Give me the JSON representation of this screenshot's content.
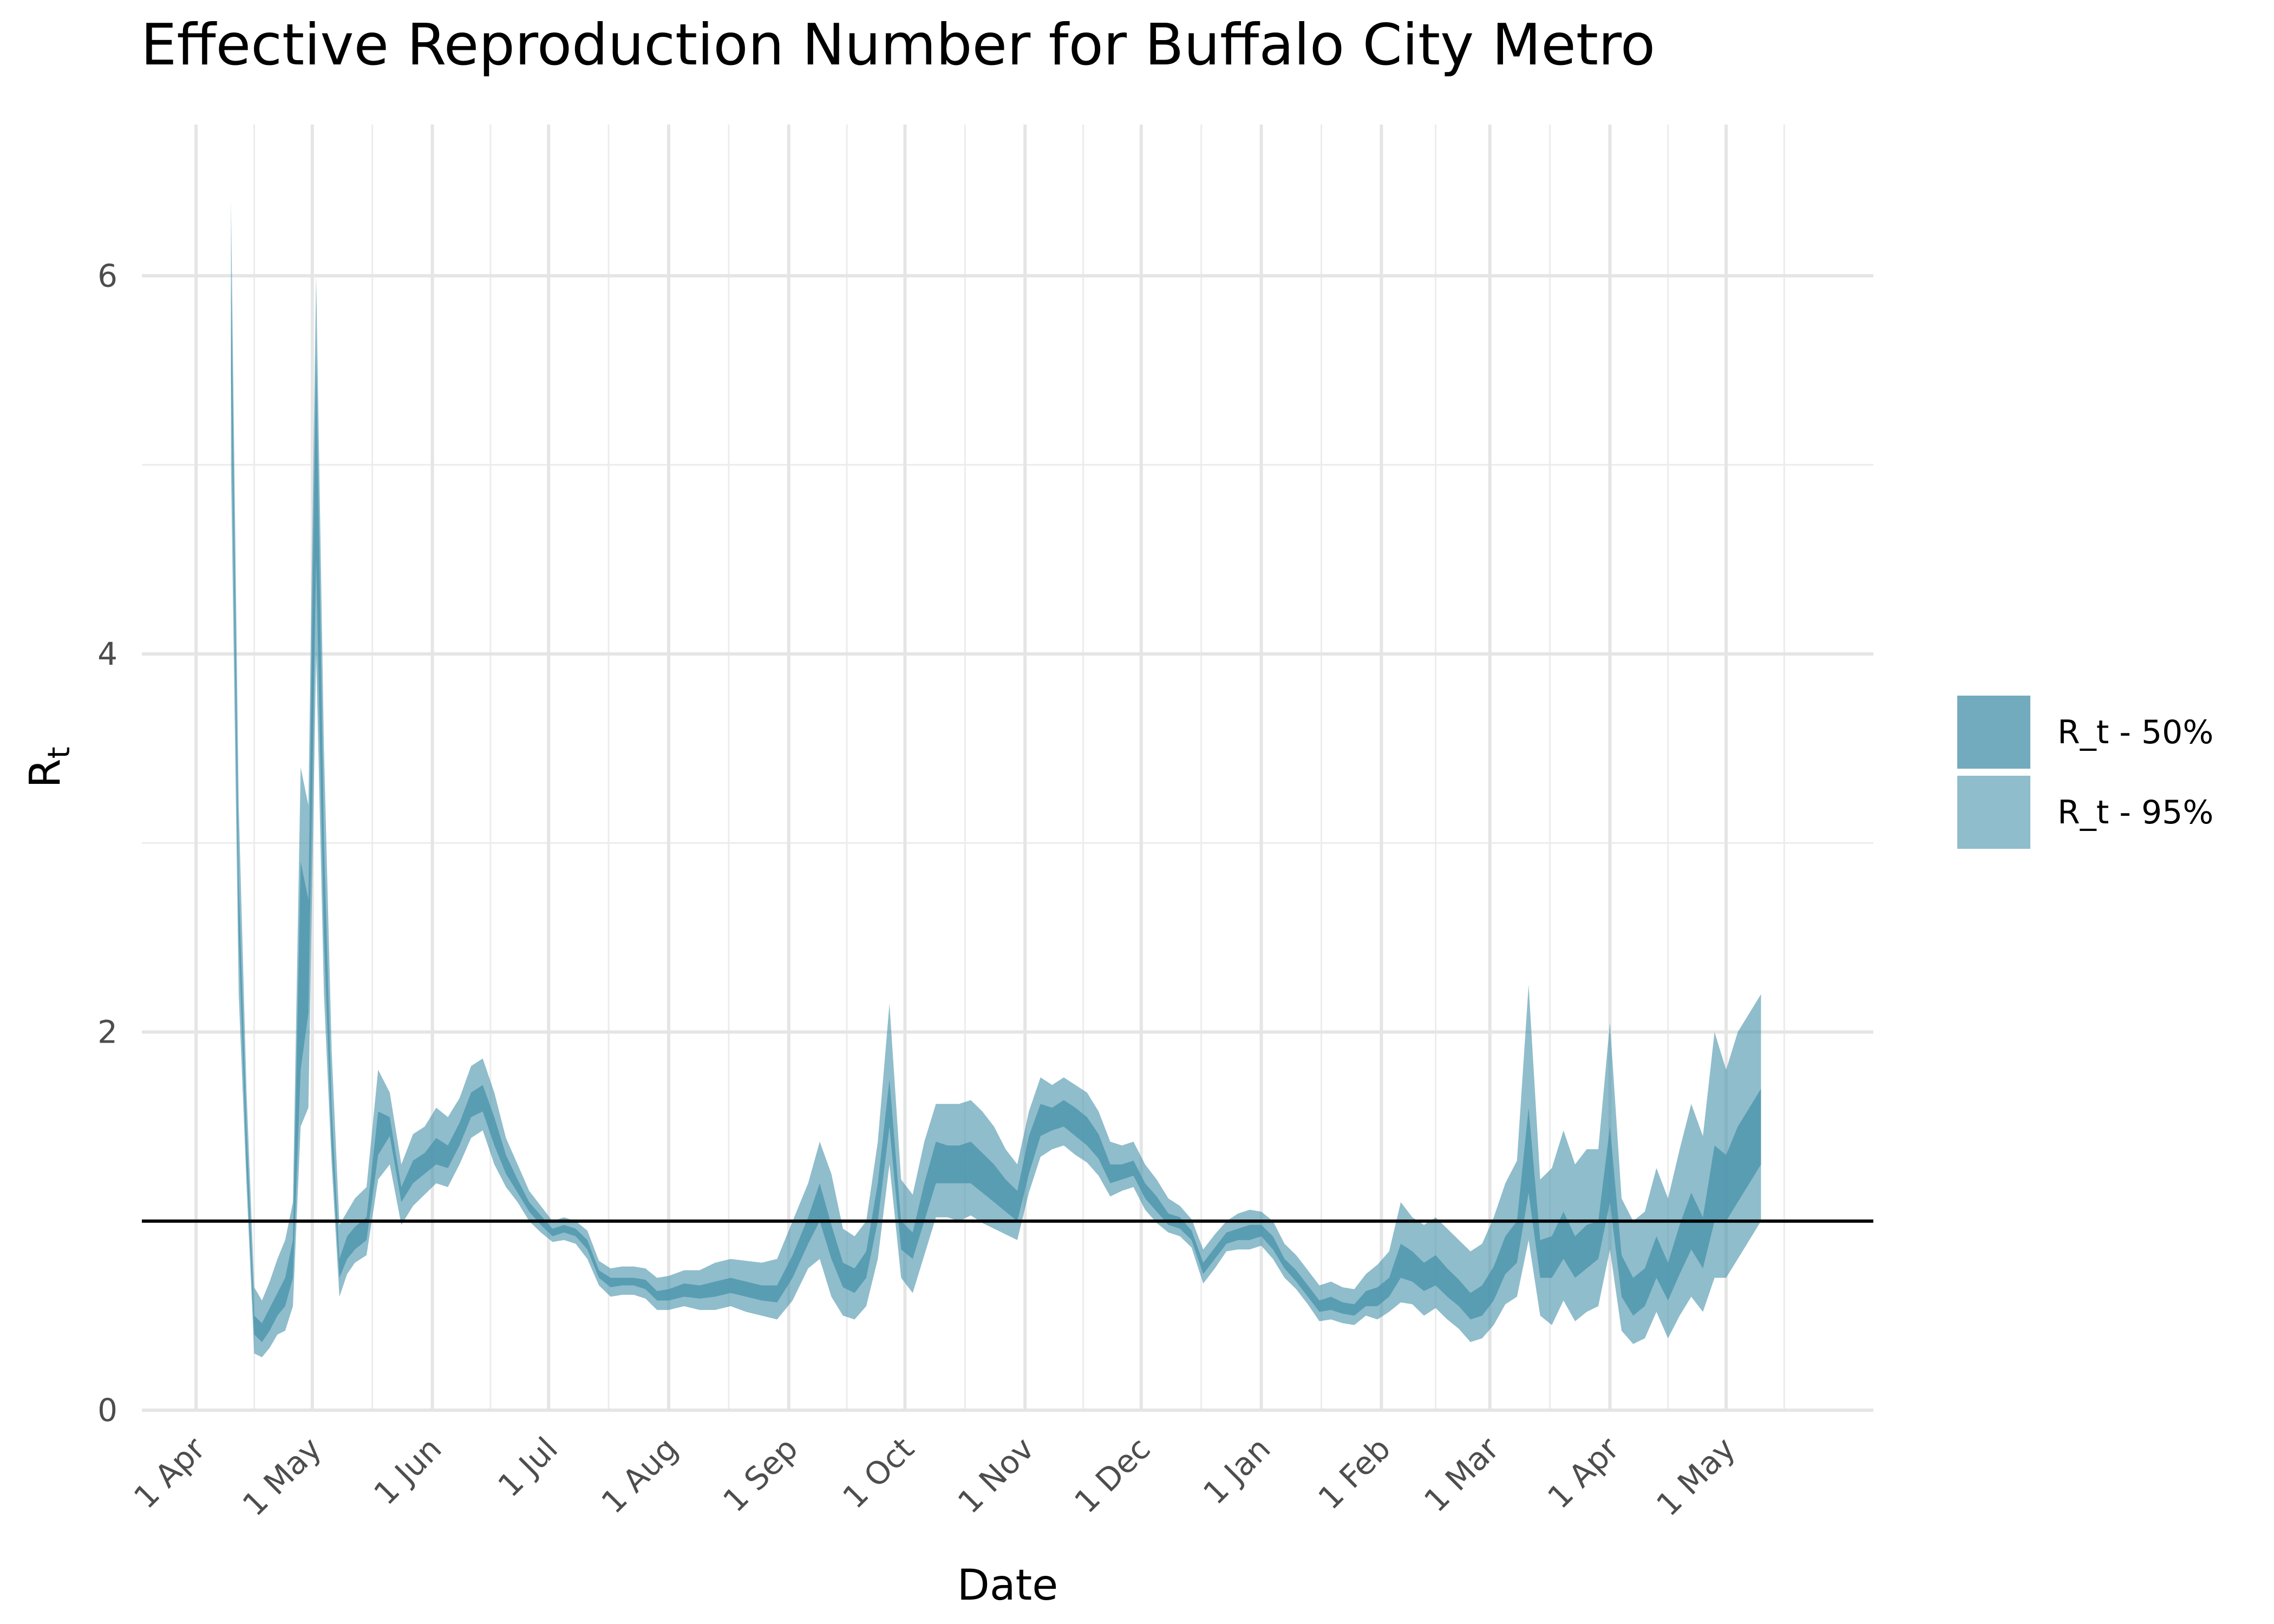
{
  "chart_data": {
    "type": "area",
    "title": "Effective Reproduction Number for Buffalo City Metro",
    "xlabel": "Date",
    "ylabel": "R",
    "ylabel_sub": "t",
    "x_range": [
      "2020-03-18",
      "2021-06-08"
    ],
    "ylim": [
      0,
      6.8
    ],
    "y_ticks": [
      0,
      2,
      4,
      6
    ],
    "x_ticks": [
      {
        "date": "2020-04-01",
        "label": "1 Apr"
      },
      {
        "date": "2020-05-01",
        "label": "1 May"
      },
      {
        "date": "2020-06-01",
        "label": "1 Jun"
      },
      {
        "date": "2020-07-01",
        "label": "1 Jul"
      },
      {
        "date": "2020-08-01",
        "label": "1 Aug"
      },
      {
        "date": "2020-09-01",
        "label": "1 Sep"
      },
      {
        "date": "2020-10-01",
        "label": "1 Oct"
      },
      {
        "date": "2020-11-01",
        "label": "1 Nov"
      },
      {
        "date": "2020-12-01",
        "label": "1 Dec"
      },
      {
        "date": "2021-01-01",
        "label": "1 Jan"
      },
      {
        "date": "2021-02-01",
        "label": "1 Feb"
      },
      {
        "date": "2021-03-01",
        "label": "1 Mar"
      },
      {
        "date": "2021-04-01",
        "label": "1 Apr"
      },
      {
        "date": "2021-05-01",
        "label": "1 May"
      }
    ],
    "reference_line": {
      "y": 1,
      "color": "#000000"
    },
    "grid": true,
    "legend_position": "right",
    "series": [
      {
        "name": "R_t - 50%",
        "color": "#4a94ac",
        "opacity": 0.78,
        "x": [
          "2020-04-10",
          "2020-04-12",
          "2020-04-14",
          "2020-04-16",
          "2020-04-18",
          "2020-04-20",
          "2020-04-22",
          "2020-04-24",
          "2020-04-26",
          "2020-04-28",
          "2020-04-30",
          "2020-05-02",
          "2020-05-04",
          "2020-05-06",
          "2020-05-08",
          "2020-05-10",
          "2020-05-12",
          "2020-05-15",
          "2020-05-18",
          "2020-05-21",
          "2020-05-24",
          "2020-05-27",
          "2020-05-30",
          "2020-06-02",
          "2020-06-05",
          "2020-06-08",
          "2020-06-11",
          "2020-06-14",
          "2020-06-17",
          "2020-06-20",
          "2020-06-23",
          "2020-06-26",
          "2020-06-29",
          "2020-07-02",
          "2020-07-05",
          "2020-07-08",
          "2020-07-11",
          "2020-07-14",
          "2020-07-17",
          "2020-07-20",
          "2020-07-23",
          "2020-07-26",
          "2020-07-29",
          "2020-08-01",
          "2020-08-05",
          "2020-08-09",
          "2020-08-13",
          "2020-08-17",
          "2020-08-21",
          "2020-08-25",
          "2020-08-29",
          "2020-09-02",
          "2020-09-06",
          "2020-09-09",
          "2020-09-12",
          "2020-09-15",
          "2020-09-18",
          "2020-09-21",
          "2020-09-24",
          "2020-09-27",
          "2020-09-30",
          "2020-10-03",
          "2020-10-06",
          "2020-10-09",
          "2020-10-12",
          "2020-10-15",
          "2020-10-18",
          "2020-10-21",
          "2020-10-24",
          "2020-10-27",
          "2020-10-30",
          "2020-11-02",
          "2020-11-05",
          "2020-11-08",
          "2020-11-11",
          "2020-11-14",
          "2020-11-17",
          "2020-11-20",
          "2020-11-23",
          "2020-11-26",
          "2020-11-29",
          "2020-12-02",
          "2020-12-05",
          "2020-12-08",
          "2020-12-11",
          "2020-12-14",
          "2020-12-17",
          "2020-12-20",
          "2020-12-23",
          "2020-12-26",
          "2020-12-29",
          "2021-01-01",
          "2021-01-04",
          "2021-01-07",
          "2021-01-10",
          "2021-01-13",
          "2021-01-16",
          "2021-01-19",
          "2021-01-22",
          "2021-01-25",
          "2021-01-28",
          "2021-01-31",
          "2021-02-03",
          "2021-02-06",
          "2021-02-09",
          "2021-02-12",
          "2021-02-15",
          "2021-02-18",
          "2021-02-21",
          "2021-02-24",
          "2021-02-27",
          "2021-03-02",
          "2021-03-05",
          "2021-03-08",
          "2021-03-11",
          "2021-03-14",
          "2021-03-17",
          "2021-03-20",
          "2021-03-23",
          "2021-03-26",
          "2021-03-29",
          "2021-04-01",
          "2021-04-04",
          "2021-04-07",
          "2021-04-10",
          "2021-04-13",
          "2021-04-16",
          "2021-04-19",
          "2021-04-22",
          "2021-04-25",
          "2021-04-28",
          "2021-05-01",
          "2021-05-04",
          "2021-05-07",
          "2021-05-10"
        ],
        "lower": [
          5.5,
          2.5,
          1.3,
          0.4,
          0.36,
          0.42,
          0.5,
          0.55,
          0.7,
          1.8,
          2.1,
          4.5,
          2.5,
          1.4,
          0.7,
          0.8,
          0.85,
          0.9,
          1.35,
          1.45,
          1.1,
          1.2,
          1.25,
          1.3,
          1.28,
          1.4,
          1.55,
          1.58,
          1.4,
          1.25,
          1.15,
          1.05,
          0.98,
          0.92,
          0.94,
          0.92,
          0.85,
          0.7,
          0.65,
          0.66,
          0.66,
          0.64,
          0.58,
          0.58,
          0.6,
          0.59,
          0.6,
          0.62,
          0.6,
          0.58,
          0.57,
          0.7,
          0.88,
          1.0,
          0.8,
          0.65,
          0.62,
          0.7,
          1.0,
          1.5,
          0.85,
          0.8,
          1.0,
          1.2,
          1.2,
          1.2,
          1.2,
          1.15,
          1.1,
          1.05,
          1.0,
          1.25,
          1.45,
          1.48,
          1.5,
          1.45,
          1.4,
          1.33,
          1.2,
          1.22,
          1.24,
          1.12,
          1.05,
          0.98,
          0.96,
          0.9,
          0.72,
          0.8,
          0.88,
          0.9,
          0.9,
          0.92,
          0.85,
          0.75,
          0.68,
          0.6,
          0.52,
          0.53,
          0.51,
          0.5,
          0.55,
          0.55,
          0.6,
          0.7,
          0.68,
          0.63,
          0.66,
          0.6,
          0.55,
          0.48,
          0.5,
          0.58,
          0.72,
          0.78,
          1.15,
          0.7,
          0.7,
          0.8,
          0.7,
          0.75,
          0.8,
          1.1,
          0.6,
          0.5,
          0.55,
          0.7,
          0.58,
          0.72,
          0.85,
          0.75,
          1.0,
          1.0,
          1.1,
          1.2,
          1.3
        ],
        "upper": [
          6.0,
          2.8,
          1.5,
          0.5,
          0.46,
          0.54,
          0.62,
          0.7,
          0.9,
          2.9,
          2.7,
          5.6,
          3.0,
          1.6,
          0.8,
          0.92,
          0.97,
          1.02,
          1.58,
          1.55,
          1.18,
          1.32,
          1.36,
          1.44,
          1.4,
          1.52,
          1.68,
          1.72,
          1.55,
          1.35,
          1.22,
          1.1,
          1.03,
          0.96,
          0.98,
          0.96,
          0.9,
          0.74,
          0.7,
          0.7,
          0.7,
          0.69,
          0.63,
          0.64,
          0.67,
          0.66,
          0.68,
          0.7,
          0.68,
          0.66,
          0.66,
          0.82,
          1.02,
          1.2,
          0.98,
          0.78,
          0.75,
          0.84,
          1.2,
          1.75,
          1.0,
          0.94,
          1.2,
          1.42,
          1.4,
          1.4,
          1.42,
          1.36,
          1.3,
          1.22,
          1.16,
          1.45,
          1.62,
          1.6,
          1.64,
          1.6,
          1.55,
          1.46,
          1.3,
          1.3,
          1.32,
          1.2,
          1.13,
          1.04,
          1.02,
          0.95,
          0.78,
          0.86,
          0.94,
          0.96,
          0.98,
          0.98,
          0.92,
          0.8,
          0.74,
          0.66,
          0.58,
          0.6,
          0.57,
          0.56,
          0.63,
          0.65,
          0.7,
          0.88,
          0.84,
          0.78,
          0.82,
          0.75,
          0.69,
          0.62,
          0.66,
          0.76,
          0.92,
          1.0,
          1.6,
          0.9,
          0.92,
          1.05,
          0.92,
          0.98,
          1.0,
          1.5,
          0.82,
          0.7,
          0.75,
          0.92,
          0.78,
          0.98,
          1.15,
          1.02,
          1.4,
          1.35,
          1.5,
          1.6,
          1.7
        ]
      },
      {
        "name": "R_t - 95%",
        "color": "#4a94ac",
        "opacity": 0.62,
        "x": [
          "2020-04-10",
          "2020-04-12",
          "2020-04-14",
          "2020-04-16",
          "2020-04-18",
          "2020-04-20",
          "2020-04-22",
          "2020-04-24",
          "2020-04-26",
          "2020-04-28",
          "2020-04-30",
          "2020-05-02",
          "2020-05-04",
          "2020-05-06",
          "2020-05-08",
          "2020-05-10",
          "2020-05-12",
          "2020-05-15",
          "2020-05-18",
          "2020-05-21",
          "2020-05-24",
          "2020-05-27",
          "2020-05-30",
          "2020-06-02",
          "2020-06-05",
          "2020-06-08",
          "2020-06-11",
          "2020-06-14",
          "2020-06-17",
          "2020-06-20",
          "2020-06-23",
          "2020-06-26",
          "2020-06-29",
          "2020-07-02",
          "2020-07-05",
          "2020-07-08",
          "2020-07-11",
          "2020-07-14",
          "2020-07-17",
          "2020-07-20",
          "2020-07-23",
          "2020-07-26",
          "2020-07-29",
          "2020-08-01",
          "2020-08-05",
          "2020-08-09",
          "2020-08-13",
          "2020-08-17",
          "2020-08-21",
          "2020-08-25",
          "2020-08-29",
          "2020-09-02",
          "2020-09-06",
          "2020-09-09",
          "2020-09-12",
          "2020-09-15",
          "2020-09-18",
          "2020-09-21",
          "2020-09-24",
          "2020-09-27",
          "2020-09-30",
          "2020-10-03",
          "2020-10-06",
          "2020-10-09",
          "2020-10-12",
          "2020-10-15",
          "2020-10-18",
          "2020-10-21",
          "2020-10-24",
          "2020-10-27",
          "2020-10-30",
          "2020-11-02",
          "2020-11-05",
          "2020-11-08",
          "2020-11-11",
          "2020-11-14",
          "2020-11-17",
          "2020-11-20",
          "2020-11-23",
          "2020-11-26",
          "2020-11-29",
          "2020-12-02",
          "2020-12-05",
          "2020-12-08",
          "2020-12-11",
          "2020-12-14",
          "2020-12-17",
          "2020-12-20",
          "2020-12-23",
          "2020-12-26",
          "2020-12-29",
          "2021-01-01",
          "2021-01-04",
          "2021-01-07",
          "2021-01-10",
          "2021-01-13",
          "2021-01-16",
          "2021-01-19",
          "2021-01-22",
          "2021-01-25",
          "2021-01-28",
          "2021-01-31",
          "2021-02-03",
          "2021-02-06",
          "2021-02-09",
          "2021-02-12",
          "2021-02-15",
          "2021-02-18",
          "2021-02-21",
          "2021-02-24",
          "2021-02-27",
          "2021-03-02",
          "2021-03-05",
          "2021-03-08",
          "2021-03-11",
          "2021-03-14",
          "2021-03-17",
          "2021-03-20",
          "2021-03-23",
          "2021-03-26",
          "2021-03-29",
          "2021-04-01",
          "2021-04-04",
          "2021-04-07",
          "2021-04-10",
          "2021-04-13",
          "2021-04-16",
          "2021-04-19",
          "2021-04-22",
          "2021-04-25",
          "2021-04-28",
          "2021-05-01",
          "2021-05-04",
          "2021-05-07",
          "2021-05-10"
        ],
        "lower": [
          5.0,
          2.2,
          1.2,
          0.3,
          0.28,
          0.33,
          0.4,
          0.42,
          0.55,
          1.5,
          1.6,
          4.0,
          2.2,
          1.3,
          0.6,
          0.72,
          0.78,
          0.82,
          1.22,
          1.3,
          0.98,
          1.08,
          1.14,
          1.2,
          1.18,
          1.3,
          1.44,
          1.48,
          1.3,
          1.18,
          1.1,
          1.0,
          0.94,
          0.89,
          0.9,
          0.88,
          0.8,
          0.66,
          0.6,
          0.61,
          0.61,
          0.59,
          0.53,
          0.53,
          0.55,
          0.53,
          0.53,
          0.55,
          0.52,
          0.5,
          0.48,
          0.58,
          0.75,
          0.8,
          0.6,
          0.5,
          0.48,
          0.55,
          0.8,
          1.3,
          0.7,
          0.62,
          0.82,
          1.02,
          1.02,
          1.0,
          1.03,
          0.99,
          0.96,
          0.93,
          0.9,
          1.15,
          1.34,
          1.38,
          1.4,
          1.35,
          1.31,
          1.24,
          1.13,
          1.16,
          1.18,
          1.06,
          0.99,
          0.94,
          0.92,
          0.86,
          0.67,
          0.75,
          0.84,
          0.85,
          0.85,
          0.87,
          0.8,
          0.7,
          0.64,
          0.56,
          0.47,
          0.48,
          0.46,
          0.45,
          0.5,
          0.48,
          0.52,
          0.57,
          0.56,
          0.5,
          0.54,
          0.48,
          0.43,
          0.36,
          0.38,
          0.45,
          0.56,
          0.6,
          0.9,
          0.5,
          0.45,
          0.58,
          0.47,
          0.52,
          0.55,
          0.85,
          0.42,
          0.35,
          0.38,
          0.52,
          0.38,
          0.5,
          0.6,
          0.52,
          0.7,
          0.7,
          0.8,
          0.9,
          1.0
        ],
        "upper": [
          6.4,
          3.2,
          1.7,
          0.65,
          0.58,
          0.68,
          0.8,
          0.9,
          1.1,
          3.4,
          3.2,
          6.0,
          3.5,
          1.9,
          0.98,
          1.05,
          1.12,
          1.18,
          1.8,
          1.68,
          1.3,
          1.46,
          1.5,
          1.6,
          1.55,
          1.65,
          1.82,
          1.86,
          1.68,
          1.44,
          1.3,
          1.16,
          1.08,
          1.0,
          1.02,
          1.0,
          0.95,
          0.79,
          0.75,
          0.76,
          0.76,
          0.75,
          0.7,
          0.71,
          0.74,
          0.74,
          0.78,
          0.8,
          0.79,
          0.78,
          0.8,
          1.0,
          1.2,
          1.42,
          1.25,
          0.96,
          0.92,
          1.0,
          1.42,
          2.15,
          1.22,
          1.14,
          1.42,
          1.62,
          1.62,
          1.62,
          1.64,
          1.58,
          1.5,
          1.38,
          1.3,
          1.58,
          1.76,
          1.72,
          1.76,
          1.72,
          1.68,
          1.58,
          1.42,
          1.4,
          1.42,
          1.3,
          1.22,
          1.12,
          1.08,
          1.01,
          0.85,
          0.93,
          1.0,
          1.04,
          1.06,
          1.05,
          1.0,
          0.88,
          0.82,
          0.74,
          0.66,
          0.68,
          0.65,
          0.64,
          0.72,
          0.77,
          0.84,
          1.1,
          1.02,
          0.98,
          1.02,
          0.96,
          0.9,
          0.84,
          0.88,
          1.02,
          1.2,
          1.32,
          2.25,
          1.22,
          1.28,
          1.48,
          1.3,
          1.38,
          1.38,
          2.05,
          1.12,
          1.0,
          1.05,
          1.28,
          1.12,
          1.38,
          1.62,
          1.45,
          2.0,
          1.8,
          2.0,
          2.1,
          2.2
        ]
      }
    ]
  }
}
